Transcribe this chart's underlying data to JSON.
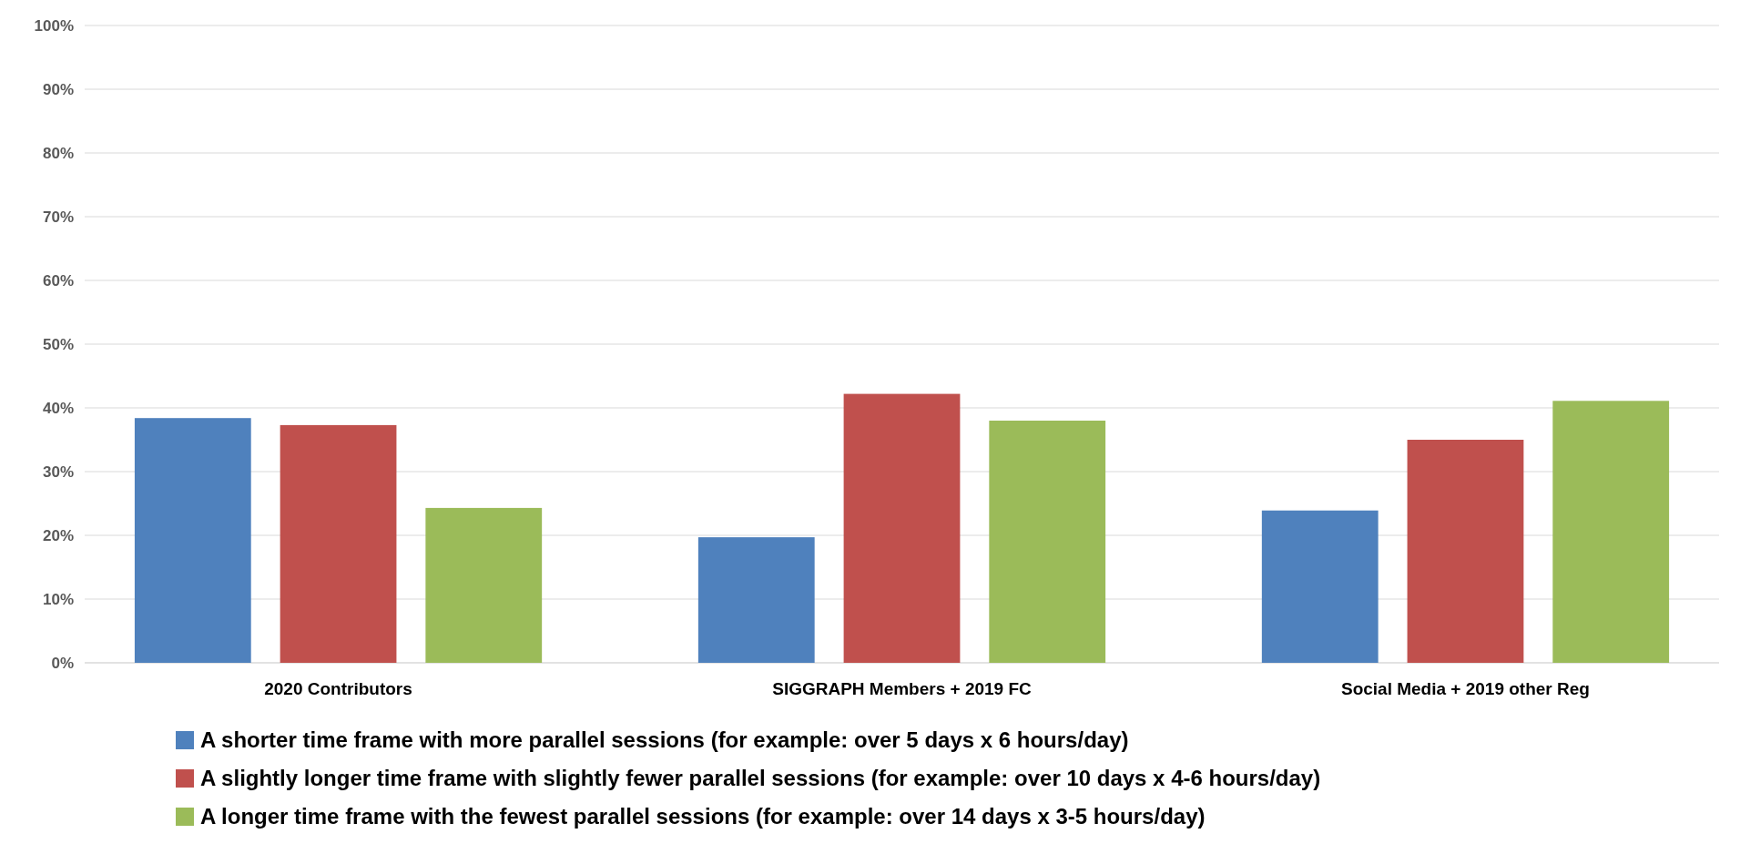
{
  "chart_data": {
    "type": "bar",
    "categories": [
      "2020 Contributors",
      "SIGGRAPH Members + 2019 FC",
      "Social Media + 2019 other Reg"
    ],
    "series": [
      {
        "name": "A shorter time frame with more parallel sessions (for example: over 5 days x 6 hours/day)",
        "color": "#4f81bd",
        "values": [
          38.4,
          19.7,
          23.9
        ]
      },
      {
        "name": "A slightly longer time frame with slightly fewer parallel sessions (for example: over 10 days x 4-6 hours/day)",
        "color": "#c0504d",
        "values": [
          37.3,
          42.2,
          35.0
        ]
      },
      {
        "name": "A longer time frame with the fewest parallel sessions (for example: over 14 days x 3-5 hours/day)",
        "color": "#9bbb59",
        "values": [
          24.3,
          38.0,
          41.1
        ]
      }
    ],
    "ylim": [
      0,
      100
    ],
    "yticks": [
      {
        "value": 0,
        "label": "0%"
      },
      {
        "value": 10,
        "label": "10%"
      },
      {
        "value": 20,
        "label": "20%"
      },
      {
        "value": 30,
        "label": "30%"
      },
      {
        "value": 40,
        "label": "40%"
      },
      {
        "value": 50,
        "label": "50%"
      },
      {
        "value": 60,
        "label": "60%"
      },
      {
        "value": 70,
        "label": "70%"
      },
      {
        "value": 80,
        "label": "80%"
      },
      {
        "value": 90,
        "label": "90%"
      },
      {
        "value": 100,
        "label": "100%"
      }
    ],
    "grid": "y",
    "legend": "bottom"
  }
}
